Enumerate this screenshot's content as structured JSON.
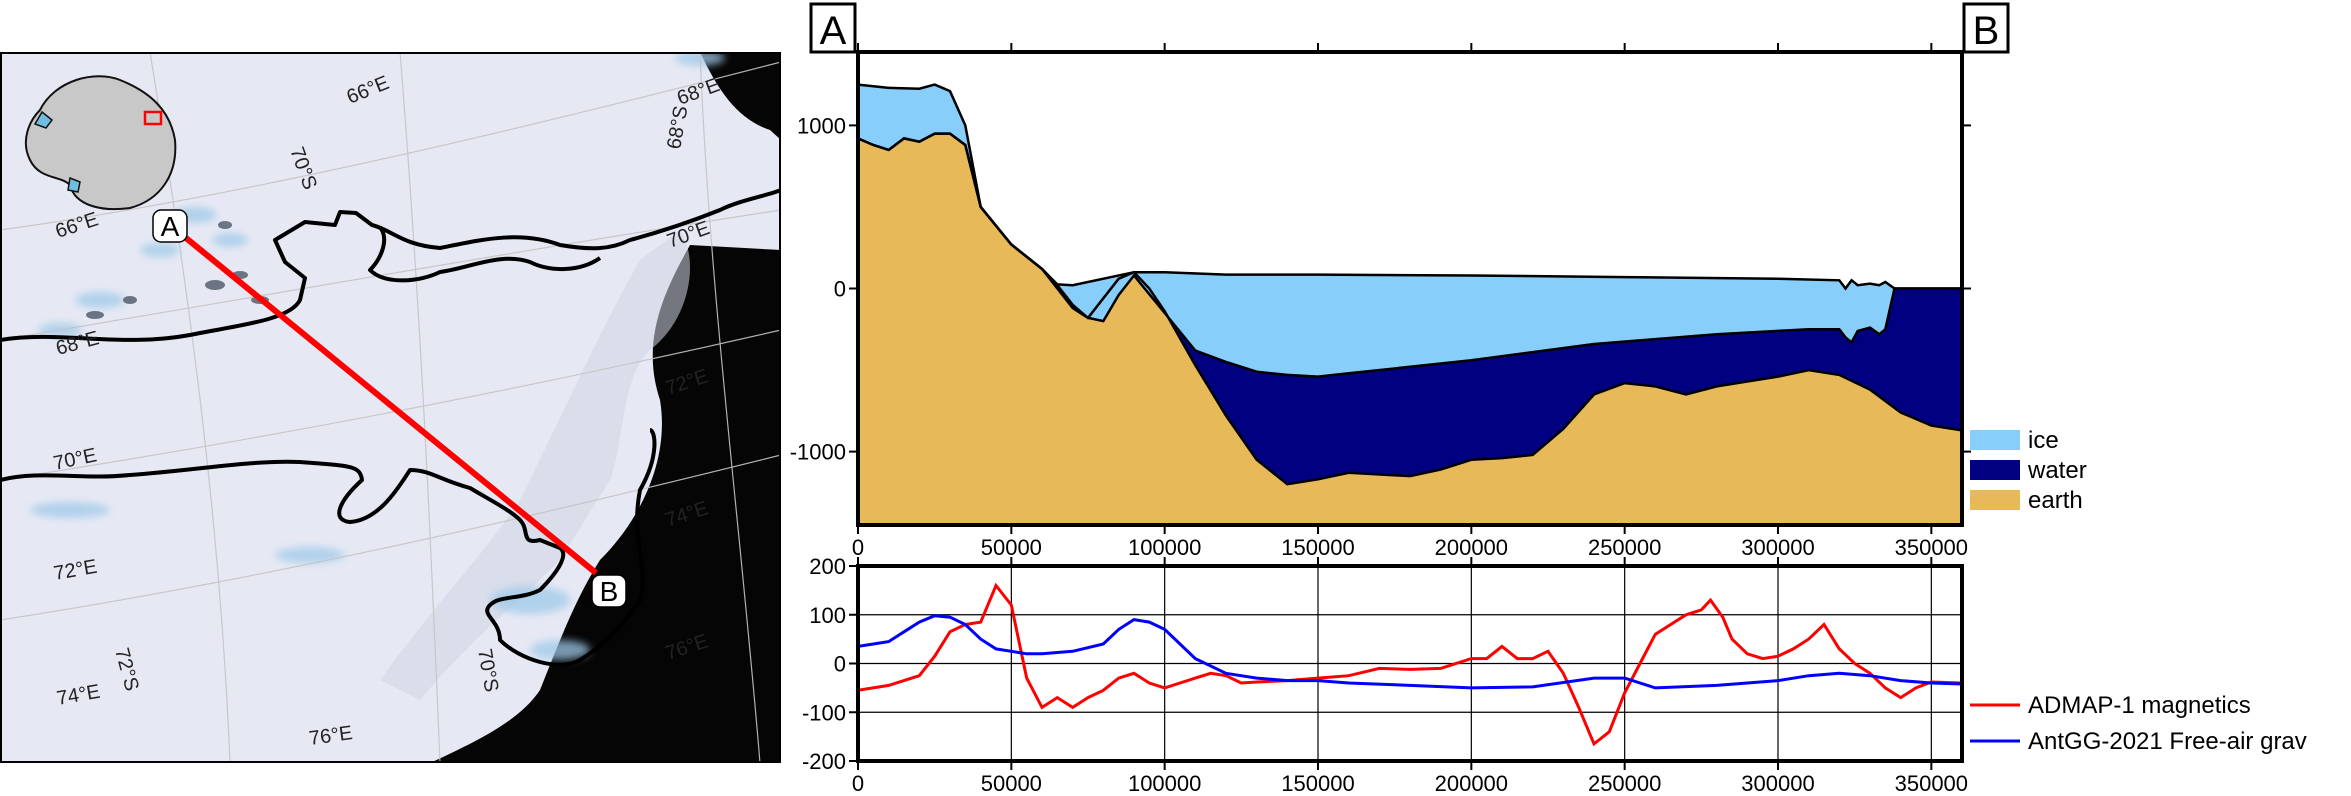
{
  "map": {
    "point_a": "A",
    "point_b": "B",
    "graticule_labels": [
      "66°E",
      "70°S",
      "66°E",
      "68°S",
      "68°E",
      "70°E",
      "68°E",
      "72°E",
      "70°E",
      "74°E",
      "72°E",
      "76°E",
      "72°S",
      "74°E",
      "70°S",
      "76°E"
    ],
    "colors": {
      "profile_line": "#ff0000",
      "ocean": "#050505",
      "ice": "#e6e9f4",
      "grounding_line": "#000000"
    }
  },
  "chart_data": [
    {
      "type": "area",
      "end_labels": {
        "left": "A",
        "right": "B"
      },
      "xlim": [
        0,
        360000
      ],
      "ylim": [
        -1450,
        1450
      ],
      "x_ticks": [
        0,
        50000,
        100000,
        150000,
        200000,
        250000,
        300000,
        350000
      ],
      "y_ticks": [
        1000,
        0,
        -1000
      ],
      "legend_position": "right",
      "series": [
        {
          "name": "ice",
          "color": "#87cefa"
        },
        {
          "name": "water",
          "color": "#000080"
        },
        {
          "name": "earth",
          "color": "#e8b958"
        }
      ],
      "surface": {
        "x": [
          0,
          10000,
          20000,
          25000,
          30000,
          35000,
          40000,
          50000,
          60000,
          65000,
          70000,
          90000,
          100000,
          120000,
          150000,
          200000,
          250000,
          300000,
          320000,
          322000,
          324000,
          326000,
          330000,
          333000,
          335000,
          338000,
          360000
        ],
        "y": [
          1250,
          1230,
          1225,
          1250,
          1210,
          1000,
          500,
          270,
          120,
          25,
          20,
          100,
          100,
          85,
          85,
          80,
          70,
          60,
          50,
          0,
          50,
          20,
          30,
          20,
          40,
          0,
          0
        ]
      },
      "ice_base": {
        "x": [
          0,
          5000,
          10000,
          15000,
          20000,
          25000,
          30000,
          35000,
          40000,
          50000,
          60000,
          65000,
          70000,
          75000,
          80000,
          85000,
          90000,
          100000,
          110000,
          120000,
          130000,
          140000,
          150000,
          160000,
          180000,
          200000,
          220000,
          240000,
          260000,
          280000,
          300000,
          310000,
          320000,
          322000,
          324000,
          326000,
          330000,
          333000,
          335000,
          338000,
          360000
        ],
        "y": [
          920,
          880,
          850,
          920,
          900,
          950,
          950,
          880,
          500,
          270,
          120,
          20,
          -100,
          -180,
          -200,
          -40,
          80,
          -150,
          -380,
          -450,
          -510,
          -530,
          -540,
          -520,
          -480,
          -440,
          -390,
          -340,
          -310,
          -280,
          -260,
          -250,
          -250,
          -300,
          -330,
          -260,
          -240,
          -280,
          -250,
          0,
          0
        ]
      },
      "bed": {
        "x": [
          0,
          5000,
          10000,
          15000,
          20000,
          25000,
          30000,
          35000,
          40000,
          50000,
          60000,
          70000,
          75000,
          80000,
          85000,
          90000,
          95000,
          100000,
          110000,
          120000,
          130000,
          140000,
          150000,
          160000,
          180000,
          190000,
          200000,
          210000,
          220000,
          230000,
          240000,
          250000,
          260000,
          270000,
          280000,
          300000,
          310000,
          320000,
          330000,
          340000,
          350000,
          360000
        ],
        "y": [
          920,
          880,
          850,
          920,
          900,
          950,
          950,
          880,
          500,
          270,
          120,
          -120,
          -180,
          -60,
          60,
          100,
          0,
          -140,
          -470,
          -780,
          -1050,
          -1200,
          -1170,
          -1130,
          -1150,
          -1110,
          -1050,
          -1040,
          -1020,
          -860,
          -650,
          -580,
          -600,
          -650,
          -600,
          -540,
          -500,
          -530,
          -620,
          -760,
          -840,
          -870
        ]
      }
    },
    {
      "type": "line",
      "xlim": [
        0,
        360000
      ],
      "ylim": [
        -200,
        200
      ],
      "x_ticks": [
        0,
        50000,
        100000,
        150000,
        200000,
        250000,
        300000,
        350000
      ],
      "y_ticks": [
        200,
        100,
        0,
        -100,
        -200
      ],
      "grid": true,
      "legend_position": "bottom-right",
      "series": [
        {
          "name": "ADMAP-1 magnetics",
          "color": "#ff0000",
          "x": [
            0,
            10000,
            20000,
            25000,
            30000,
            35000,
            40000,
            45000,
            50000,
            55000,
            60000,
            65000,
            70000,
            75000,
            80000,
            85000,
            90000,
            95000,
            100000,
            105000,
            110000,
            115000,
            120000,
            125000,
            130000,
            140000,
            150000,
            160000,
            170000,
            180000,
            190000,
            200000,
            205000,
            210000,
            215000,
            220000,
            225000,
            230000,
            235000,
            240000,
            245000,
            250000,
            255000,
            260000,
            265000,
            270000,
            275000,
            278000,
            282000,
            285000,
            290000,
            295000,
            300000,
            305000,
            310000,
            315000,
            320000,
            325000,
            330000,
            335000,
            340000,
            345000,
            350000,
            360000
          ],
          "y": [
            -55,
            -45,
            -25,
            15,
            65,
            80,
            85,
            160,
            120,
            -30,
            -90,
            -70,
            -90,
            -70,
            -55,
            -30,
            -20,
            -40,
            -50,
            -40,
            -30,
            -20,
            -25,
            -40,
            -38,
            -35,
            -30,
            -25,
            -10,
            -12,
            -10,
            10,
            10,
            35,
            10,
            10,
            25,
            -20,
            -90,
            -165,
            -140,
            -60,
            0,
            60,
            80,
            100,
            110,
            130,
            95,
            50,
            20,
            10,
            15,
            30,
            50,
            80,
            30,
            0,
            -20,
            -50,
            -70,
            -50,
            -38,
            -40
          ]
        },
        {
          "name": "AntGG-2021 Free-air grav",
          "color": "#0000ff",
          "x": [
            0,
            5000,
            10000,
            15000,
            20000,
            25000,
            30000,
            35000,
            40000,
            45000,
            50000,
            55000,
            60000,
            70000,
            80000,
            85000,
            90000,
            95000,
            100000,
            105000,
            110000,
            120000,
            130000,
            140000,
            150000,
            160000,
            180000,
            200000,
            220000,
            240000,
            250000,
            260000,
            280000,
            300000,
            310000,
            320000,
            330000,
            340000,
            350000,
            360000
          ],
          "y": [
            35,
            40,
            45,
            65,
            85,
            98,
            95,
            80,
            50,
            30,
            25,
            20,
            20,
            25,
            40,
            70,
            90,
            85,
            70,
            40,
            10,
            -20,
            -30,
            -35,
            -35,
            -40,
            -45,
            -50,
            -48,
            -30,
            -30,
            -50,
            -45,
            -35,
            -25,
            -20,
            -25,
            -35,
            -40,
            -42
          ]
        }
      ]
    }
  ]
}
